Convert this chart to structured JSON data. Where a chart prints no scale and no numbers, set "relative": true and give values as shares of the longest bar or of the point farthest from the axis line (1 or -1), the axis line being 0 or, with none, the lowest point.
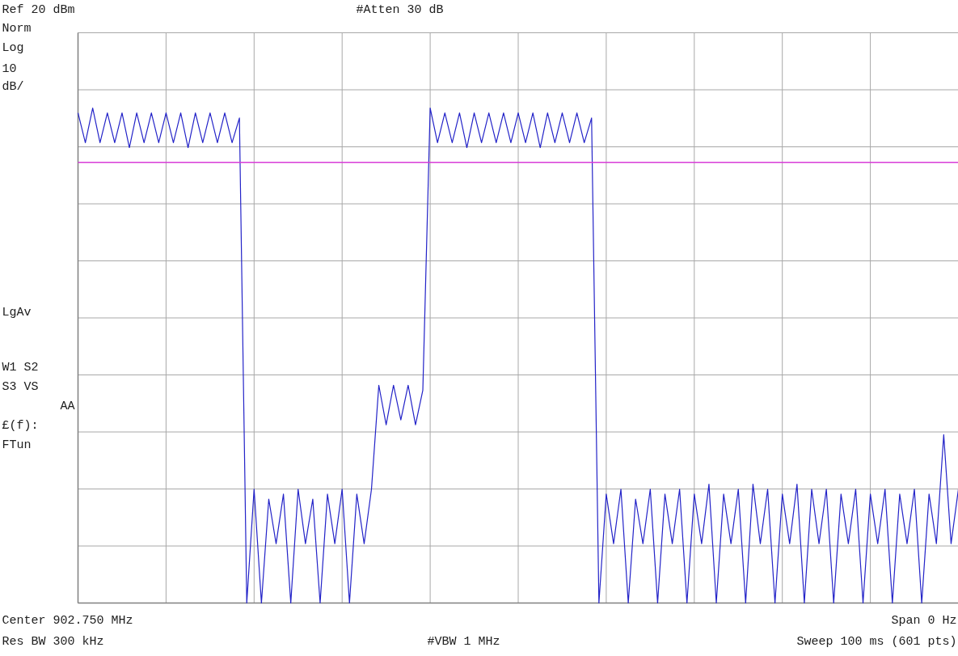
{
  "chart_data": {
    "type": "line",
    "relative": true,
    "grid": true,
    "marker": "none",
    "line_style": "solid",
    "categories": [
      null,
      null,
      null,
      null,
      null,
      null,
      null,
      null,
      null,
      null,
      null,
      null,
      null,
      null,
      null,
      null,
      null,
      null,
      null,
      null,
      null,
      null,
      null,
      null,
      null,
      null,
      null,
      null,
      null,
      null,
      null,
      null,
      null,
      null,
      null,
      null,
      null,
      null,
      null,
      null,
      null,
      null,
      null,
      null,
      null,
      null,
      null,
      null,
      null,
      null,
      null,
      null,
      null,
      null,
      null,
      null,
      null,
      null,
      null,
      null,
      null,
      null,
      null,
      null,
      null,
      null,
      null,
      null,
      null,
      null,
      null,
      null,
      null,
      null,
      null,
      null,
      null,
      null,
      null,
      null,
      null,
      null,
      null,
      null,
      null,
      null,
      null,
      null,
      null,
      null,
      null,
      null,
      null,
      null,
      null,
      null,
      null,
      null,
      null,
      null,
      null,
      null,
      null,
      null,
      null,
      null,
      null,
      null,
      null,
      null,
      null,
      null,
      null,
      null,
      null,
      null,
      null,
      null,
      null,
      null,
      null
    ],
    "series": [
      {
        "color": "#2323c8",
        "values": [
          0.99,
          0.93,
          1.0,
          0.93,
          0.99,
          0.93,
          0.99,
          0.92,
          0.99,
          0.93,
          0.99,
          0.93,
          0.99,
          0.93,
          0.99,
          0.92,
          0.99,
          0.93,
          0.99,
          0.93,
          0.99,
          0.93,
          0.98,
          0.0,
          0.23,
          0.0,
          0.21,
          0.12,
          0.22,
          0.0,
          0.23,
          0.12,
          0.21,
          0.0,
          0.22,
          0.12,
          0.23,
          0.0,
          0.22,
          0.12,
          0.23,
          0.44,
          0.36,
          0.44,
          0.37,
          0.44,
          0.36,
          0.43,
          1.0,
          0.93,
          0.99,
          0.93,
          0.99,
          0.92,
          0.99,
          0.93,
          0.99,
          0.93,
          0.99,
          0.93,
          0.99,
          0.93,
          0.99,
          0.92,
          0.99,
          0.93,
          0.99,
          0.93,
          0.99,
          0.93,
          0.98,
          0.0,
          0.22,
          0.12,
          0.23,
          0.0,
          0.21,
          0.12,
          0.23,
          0.0,
          0.22,
          0.12,
          0.23,
          0.0,
          0.22,
          0.12,
          0.24,
          0.0,
          0.22,
          0.12,
          0.23,
          0.0,
          0.24,
          0.12,
          0.23,
          0.0,
          0.22,
          0.12,
          0.24,
          0.0,
          0.23,
          0.12,
          0.23,
          0.0,
          0.22,
          0.12,
          0.23,
          0.0,
          0.22,
          0.12,
          0.23,
          0.0,
          0.22,
          0.12,
          0.23,
          0.0,
          0.22,
          0.12,
          0.34,
          0.12,
          0.23
        ]
      }
    ],
    "ref_lines": [
      {
        "axis": "y",
        "value": 0.89,
        "color": "#d83cd8"
      }
    ],
    "annotations": [
      "Ref 20 dBm",
      "#Atten 30 dB",
      "Norm",
      "Log",
      "10",
      "dB/",
      "LgAv",
      "W1  S2",
      "S3  VS",
      "AA",
      "£(f):",
      "FTun",
      "Center 902.750 MHz",
      "Span 0 Hz",
      "Res BW 300 kHz",
      "#VBW 1 MHz",
      "Sweep 100 ms (601 pts)"
    ]
  }
}
